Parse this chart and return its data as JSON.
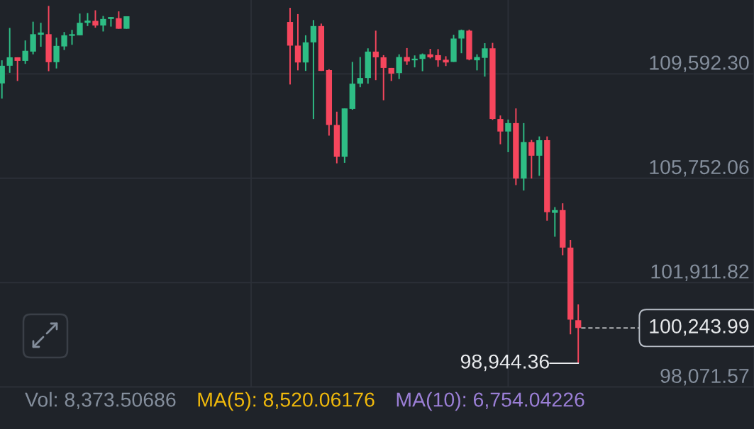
{
  "chart_data": {
    "type": "candlestick",
    "categories": [
      null,
      null,
      null,
      null,
      null,
      null,
      null,
      null,
      null,
      null,
      null,
      null,
      null,
      null,
      null,
      null,
      null,
      null,
      null,
      null,
      null,
      null,
      null,
      null,
      null,
      null,
      null,
      null,
      null,
      null,
      null,
      null,
      null,
      null,
      null,
      null,
      null,
      null,
      null,
      null,
      null,
      null,
      null,
      null,
      null,
      null,
      null,
      null,
      null,
      null,
      null,
      null,
      null,
      null,
      null,
      null,
      null,
      null,
      null,
      null,
      null,
      null,
      null,
      null,
      null,
      null,
      null,
      null,
      null,
      null,
      null,
      null,
      null,
      null,
      null
    ],
    "ohlc": [
      [
        109240,
        110090,
        108680,
        109890
      ],
      [
        109890,
        111280,
        109630,
        110200
      ],
      [
        110200,
        110200,
        109330,
        110070
      ],
      [
        110070,
        110820,
        109960,
        110440
      ],
      [
        110410,
        111510,
        110310,
        111050
      ],
      [
        111030,
        111470,
        110590,
        111110
      ],
      [
        111050,
        112090,
        109690,
        110020
      ],
      [
        110020,
        110920,
        109790,
        110620
      ],
      [
        110600,
        111130,
        110470,
        111010
      ],
      [
        110990,
        111210,
        110660,
        111050
      ],
      [
        111010,
        111810,
        111010,
        111470
      ],
      [
        111470,
        111830,
        111350,
        111550
      ],
      [
        111540,
        111930,
        111290,
        111370
      ],
      [
        111370,
        111720,
        111150,
        111610
      ],
      [
        111610,
        111680,
        111330,
        111680
      ],
      [
        111640,
        111890,
        111250,
        111250
      ],
      [
        111250,
        111710,
        111250,
        111710
      ],
      null,
      null,
      null,
      null,
      null,
      null,
      null,
      null,
      null,
      null,
      null,
      null,
      null,
      null,
      null,
      null,
      null,
      null,
      null,
      null,
      [
        111500,
        112020,
        109200,
        110630
      ],
      [
        110630,
        111790,
        109720,
        110010
      ],
      [
        110010,
        111010,
        109700,
        110750
      ],
      [
        110750,
        111570,
        107930,
        111350
      ],
      [
        111350,
        111440,
        109700,
        109700
      ],
      [
        109730,
        109760,
        107320,
        107710
      ],
      [
        107710,
        108200,
        106300,
        106540
      ],
      [
        106540,
        108320,
        106320,
        108320
      ],
      [
        108300,
        110030,
        108270,
        109230
      ],
      [
        109230,
        110210,
        109100,
        109440
      ],
      [
        109440,
        110530,
        109230,
        110410
      ],
      [
        110410,
        111180,
        109360,
        110200
      ],
      [
        110200,
        110280,
        108620,
        109810
      ],
      [
        109810,
        109810,
        109330,
        109600
      ],
      [
        109620,
        110310,
        109400,
        110210
      ],
      [
        110210,
        110540,
        109920,
        110050
      ],
      [
        110090,
        110270,
        109830,
        110150
      ],
      [
        110140,
        110340,
        109690,
        110310
      ],
      [
        110310,
        110510,
        110160,
        110200
      ],
      [
        110280,
        110500,
        109850,
        110090
      ],
      [
        110110,
        110240,
        109880,
        110010
      ],
      [
        110030,
        111030,
        110030,
        110890
      ],
      [
        110890,
        111220,
        110350,
        111200
      ],
      [
        111180,
        111220,
        110090,
        110120
      ],
      [
        110090,
        110310,
        109720,
        110210
      ],
      [
        110180,
        110720,
        109490,
        110530
      ],
      [
        110530,
        110730,
        107900,
        107930
      ],
      [
        107930,
        108060,
        107000,
        107470
      ],
      [
        107470,
        107910,
        106710,
        107780
      ],
      [
        107780,
        108320,
        105500,
        105740
      ],
      [
        105740,
        107780,
        105300,
        107080
      ],
      [
        107080,
        107160,
        105740,
        106580
      ],
      [
        106580,
        107290,
        105840,
        107150
      ],
      [
        107150,
        107290,
        104190,
        104500
      ],
      [
        104480,
        104690,
        103600,
        104580
      ],
      [
        104580,
        104830,
        102920,
        103200
      ],
      [
        103200,
        103480,
        100010,
        100550
      ],
      [
        100530,
        101110,
        98944.36,
        100243.99
      ]
    ],
    "colors": [
      "#2ebd85",
      "#2ebd85",
      "#f6465d",
      "#2ebd85",
      "#2ebd85",
      "#2ebd85",
      "#f6465d",
      "#2ebd85",
      "#2ebd85",
      "#2ebd85",
      "#2ebd85",
      "#2ebd85",
      "#f6465d",
      "#2ebd85",
      "#2ebd85",
      "#f6465d",
      "#2ebd85",
      null,
      null,
      null,
      null,
      null,
      null,
      null,
      null,
      null,
      null,
      null,
      null,
      null,
      null,
      null,
      null,
      null,
      null,
      null,
      null,
      "#f6465d",
      "#f6465d",
      "#2ebd85",
      "#2ebd85",
      "#f6465d",
      "#f6465d",
      "#f6465d",
      "#2ebd85",
      "#2ebd85",
      "#2ebd85",
      "#2ebd85",
      "#f6465d",
      "#f6465d",
      "#f6465d",
      "#2ebd85",
      "#f6465d",
      "#2ebd85",
      "#2ebd85",
      "#f6465d",
      "#f6465d",
      "#f6465d",
      "#2ebd85",
      "#2ebd85",
      "#f6465d",
      "#2ebd85",
      "#2ebd85",
      "#f6465d",
      "#f6465d",
      "#2ebd85",
      "#f6465d",
      "#2ebd85",
      "#f6465d",
      "#2ebd85",
      "#f6465d",
      "#2ebd85",
      "#f6465d",
      "#f6465d",
      "#f6465d"
    ],
    "ylim": [
      98071.57,
      112308
    ],
    "yticks": [
      {
        "value": 98071.57,
        "label": "98,071.57"
      },
      {
        "value": 101911.82,
        "label": "101,911.82"
      },
      {
        "value": 105752.06,
        "label": "105,752.06"
      },
      {
        "value": 109592.3,
        "label": "109,592.30"
      }
    ],
    "tick_labels": "y",
    "grid": true,
    "ref_lines": [
      {
        "axis": "y",
        "value": 100243.99,
        "label": "100,243.99",
        "line_style": "dashed",
        "color": "#e6e8ea"
      }
    ],
    "annotations": [
      "Vol: 8,373.50686",
      "MA(5): 8,520.06176",
      "MA(10): 6,754.04226",
      "98,944.36"
    ]
  }
}
